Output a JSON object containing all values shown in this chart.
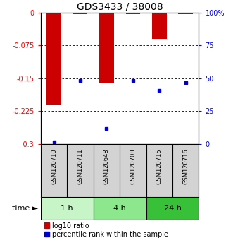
{
  "title": "GDS3433 / 38008",
  "samples": [
    "GSM120710",
    "GSM120711",
    "GSM120648",
    "GSM120708",
    "GSM120715",
    "GSM120716"
  ],
  "bar_values": [
    -0.21,
    -0.003,
    -0.16,
    -0.003,
    -0.06,
    -0.003
  ],
  "blue_marker_values": [
    -0.295,
    -0.155,
    -0.265,
    -0.155,
    -0.178,
    -0.16
  ],
  "time_groups": [
    {
      "label": "1 h",
      "start": 0,
      "end": 2,
      "color": "#c8f5c8"
    },
    {
      "label": "4 h",
      "start": 2,
      "end": 4,
      "color": "#8de88d"
    },
    {
      "label": "24 h",
      "start": 4,
      "end": 6,
      "color": "#38c038"
    }
  ],
  "ylim_left": [
    -0.3,
    0.0
  ],
  "ylim_right": [
    0,
    100
  ],
  "yticks_left": [
    0,
    -0.075,
    -0.15,
    -0.225,
    -0.3
  ],
  "yticks_right": [
    100,
    75,
    50,
    25,
    0
  ],
  "ytick_labels_left": [
    "0",
    "-0.075",
    "-0.15",
    "-0.225",
    "-0.3"
  ],
  "ytick_labels_right": [
    "100%",
    "75",
    "50",
    "25",
    "0"
  ],
  "bar_color": "#cc0000",
  "blue_color": "#0000cc",
  "bar_width": 0.55,
  "bg_color": "#ffffff",
  "label_bg": "#d3d3d3",
  "title_fontsize": 10,
  "tick_fontsize": 7,
  "sample_fontsize": 6,
  "time_fontsize": 8,
  "legend_fontsize": 7
}
